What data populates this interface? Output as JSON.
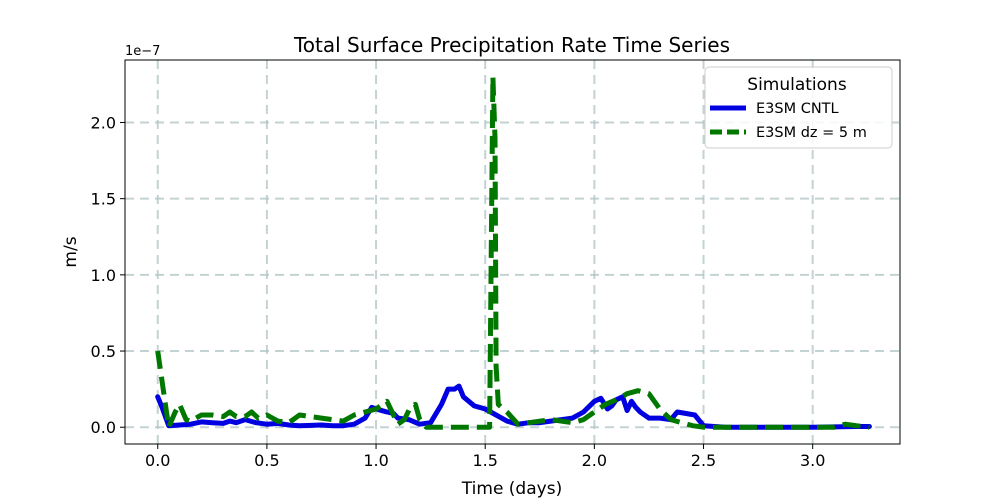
{
  "chart_data": {
    "type": "line",
    "title": "Total Surface Precipitation Rate Time Series",
    "xlabel": "Time (days)",
    "ylabel": "m/s",
    "y_offset_label": "1e−7",
    "xlim": [
      -0.15,
      3.4
    ],
    "ylim": [
      -0.11,
      2.41
    ],
    "xticks": [
      0.0,
      0.5,
      1.0,
      1.5,
      2.0,
      2.5,
      3.0
    ],
    "xtick_labels": [
      "0.0",
      "0.5",
      "1.0",
      "1.5",
      "2.0",
      "2.5",
      "3.0"
    ],
    "yticks": [
      0.0,
      0.5,
      1.0,
      1.5,
      2.0
    ],
    "ytick_labels": [
      "0.0",
      "0.5",
      "1.0",
      "1.5",
      "2.0"
    ],
    "grid": true,
    "legend": {
      "title": "Simulations",
      "location": "top-right"
    },
    "series": [
      {
        "name": "E3SM CNTL",
        "color": "#0000e0",
        "style": "solid",
        "x": [
          0.0,
          0.02,
          0.05,
          0.1,
          0.15,
          0.2,
          0.25,
          0.3,
          0.33,
          0.36,
          0.4,
          0.45,
          0.5,
          0.55,
          0.6,
          0.65,
          0.7,
          0.75,
          0.8,
          0.85,
          0.9,
          0.95,
          0.98,
          1.0,
          1.05,
          1.08,
          1.1,
          1.15,
          1.2,
          1.25,
          1.3,
          1.33,
          1.36,
          1.38,
          1.4,
          1.45,
          1.5,
          1.55,
          1.6,
          1.65,
          1.7,
          1.75,
          1.8,
          1.85,
          1.9,
          1.95,
          2.0,
          2.03,
          2.06,
          2.08,
          2.1,
          2.13,
          2.15,
          2.17,
          2.19,
          2.21,
          2.25,
          2.3,
          2.35,
          2.38,
          2.42,
          2.46,
          2.5,
          2.6,
          2.8,
          3.0,
          3.2,
          3.26
        ],
        "y": [
          0.2,
          0.13,
          0.01,
          0.015,
          0.02,
          0.035,
          0.03,
          0.025,
          0.04,
          0.03,
          0.05,
          0.03,
          0.02,
          0.025,
          0.015,
          0.01,
          0.012,
          0.015,
          0.01,
          0.01,
          0.02,
          0.06,
          0.13,
          0.12,
          0.1,
          0.09,
          0.06,
          0.05,
          0.02,
          0.03,
          0.15,
          0.25,
          0.25,
          0.27,
          0.2,
          0.14,
          0.12,
          0.08,
          0.04,
          0.02,
          0.03,
          0.03,
          0.04,
          0.05,
          0.06,
          0.1,
          0.17,
          0.19,
          0.12,
          0.14,
          0.18,
          0.2,
          0.11,
          0.17,
          0.13,
          0.1,
          0.06,
          0.06,
          0.05,
          0.1,
          0.09,
          0.08,
          0.01,
          0.0,
          0.0,
          0.0,
          0.005,
          0.005
        ]
      },
      {
        "name": "E3SM dz = 5 m",
        "color": "#007800",
        "style": "dashed",
        "x": [
          0.0,
          0.02,
          0.05,
          0.08,
          0.1,
          0.13,
          0.15,
          0.2,
          0.25,
          0.3,
          0.33,
          0.36,
          0.4,
          0.43,
          0.46,
          0.5,
          0.55,
          0.6,
          0.65,
          0.7,
          0.75,
          0.8,
          0.85,
          0.9,
          0.95,
          1.0,
          1.05,
          1.08,
          1.1,
          1.13,
          1.16,
          1.18,
          1.2,
          1.23,
          1.3,
          1.4,
          1.5,
          1.52,
          1.535,
          1.545,
          1.55,
          1.56,
          1.6,
          1.65,
          1.7,
          1.8,
          1.9,
          1.95,
          2.0,
          2.05,
          2.1,
          2.15,
          2.2,
          2.25,
          2.3,
          2.35,
          2.4,
          2.45,
          2.5,
          2.6,
          2.8,
          3.0,
          3.1,
          3.15,
          3.2,
          3.26
        ],
        "y": [
          0.5,
          0.3,
          0.0,
          0.1,
          0.15,
          0.05,
          0.04,
          0.08,
          0.08,
          0.07,
          0.1,
          0.07,
          0.07,
          0.1,
          0.06,
          0.08,
          0.04,
          0.03,
          0.08,
          0.07,
          0.06,
          0.05,
          0.04,
          0.08,
          0.1,
          0.12,
          0.17,
          0.08,
          0.02,
          0.05,
          0.14,
          0.15,
          0.05,
          0.0,
          0.0,
          0.0,
          0.0,
          0.0,
          2.3,
          1.9,
          0.4,
          0.15,
          0.1,
          0.02,
          0.03,
          0.05,
          0.03,
          0.05,
          0.1,
          0.15,
          0.18,
          0.22,
          0.24,
          0.22,
          0.12,
          0.05,
          0.03,
          0.01,
          0.0,
          0.0,
          0.0,
          0.0,
          0.0,
          0.02,
          0.01,
          0.0
        ]
      }
    ]
  }
}
